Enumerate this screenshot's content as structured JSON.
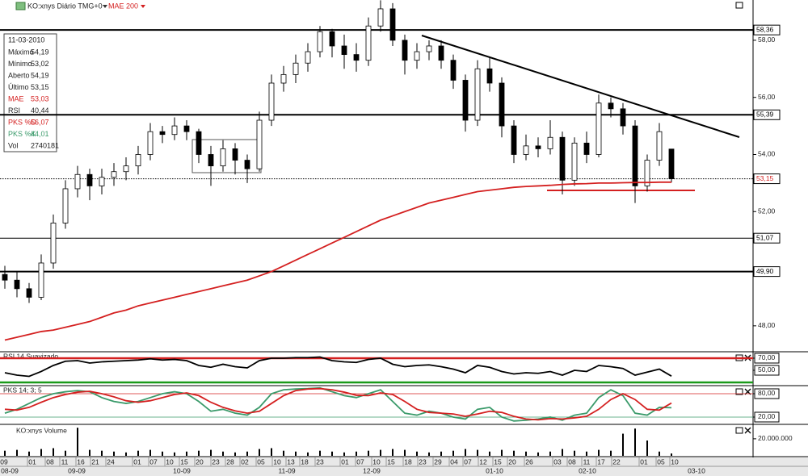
{
  "header": {
    "title": "KO:xnys Diário TMG+0"
  },
  "info_box": {
    "date": "11-03-2010",
    "rows": [
      {
        "label": "Máximo",
        "value": "54,19",
        "color": "#222"
      },
      {
        "label": "Mínimo",
        "value": "53,02",
        "color": "#222"
      },
      {
        "label": "Aberto",
        "value": "54,19",
        "color": "#222"
      },
      {
        "label": "Último",
        "value": "53,15",
        "color": "#222"
      },
      {
        "label": "MAE",
        "value": "53,03",
        "color": "#d42020"
      },
      {
        "label": "RSI",
        "value": "40,44",
        "color": "#222"
      },
      {
        "label": "PKS %D",
        "value": "56,07",
        "color": "#d42020"
      },
      {
        "label": "PKS %K",
        "value": "44,01",
        "color": "#3a9a6a"
      },
      {
        "label": "Vol",
        "value": "2740181",
        "color": "#222"
      }
    ]
  },
  "chart_data": [
    {
      "type": "candlestick",
      "open": [
        49.8,
        49.6,
        49.3,
        49.0,
        50.2,
        51.6,
        52.8,
        53.3,
        52.9,
        53.2,
        53.4,
        53.6,
        54.0,
        54.8,
        54.7,
        55.0,
        54.8,
        54.0,
        53.6,
        54.2,
        53.8,
        53.5,
        55.2,
        56.5,
        56.8,
        57.2,
        57.6,
        58.3,
        57.8,
        57.5,
        57.3,
        58.5,
        59.1,
        58.0,
        57.3,
        57.6,
        57.8,
        57.3,
        56.6,
        55.2,
        57.0,
        56.5,
        55.0,
        54.0,
        54.3,
        54.2,
        54.6,
        53.1,
        54.4,
        54.0,
        55.8,
        55.6,
        55.0,
        52.9,
        53.8,
        54.19
      ],
      "high": [
        50.1,
        49.9,
        49.5,
        50.5,
        51.9,
        53.1,
        53.6,
        53.5,
        53.5,
        53.7,
        53.9,
        54.3,
        55.1,
        55.0,
        55.3,
        55.2,
        54.9,
        54.3,
        54.5,
        54.4,
        54.0,
        55.5,
        56.8,
        57.1,
        57.5,
        57.9,
        58.5,
        58.4,
        58.2,
        57.9,
        58.8,
        59.4,
        59.3,
        58.2,
        57.9,
        58.0,
        58.0,
        57.5,
        56.8,
        57.3,
        57.4,
        56.7,
        55.2,
        54.7,
        54.6,
        55.2,
        54.8,
        54.6,
        54.8,
        56.1,
        56.0,
        55.8,
        55.2,
        54.0,
        55.1,
        54.19
      ],
      "low": [
        49.3,
        49.0,
        48.8,
        48.9,
        50.0,
        51.4,
        52.5,
        52.4,
        52.6,
        52.9,
        53.1,
        53.3,
        53.8,
        54.4,
        54.5,
        54.5,
        53.7,
        52.9,
        53.4,
        53.3,
        53.0,
        53.4,
        55.0,
        56.2,
        56.5,
        56.9,
        57.4,
        57.4,
        57.0,
        56.9,
        57.1,
        58.3,
        57.8,
        56.8,
        57.0,
        57.3,
        57.0,
        56.3,
        54.8,
        55.0,
        56.2,
        54.6,
        53.7,
        53.8,
        53.9,
        54.0,
        52.6,
        52.9,
        53.7,
        53.9,
        55.3,
        54.7,
        52.3,
        52.7,
        53.6,
        53.02
      ],
      "close": [
        49.6,
        49.3,
        49.0,
        50.2,
        51.6,
        52.8,
        53.3,
        52.9,
        53.2,
        53.4,
        53.6,
        54.0,
        54.8,
        54.7,
        55.0,
        54.8,
        54.0,
        53.6,
        54.2,
        53.8,
        53.5,
        55.2,
        56.5,
        56.8,
        57.2,
        57.6,
        58.3,
        57.8,
        57.5,
        57.3,
        58.5,
        59.1,
        58.0,
        57.3,
        57.6,
        57.8,
        57.3,
        56.6,
        55.2,
        57.0,
        56.5,
        55.0,
        54.0,
        54.3,
        54.2,
        54.6,
        53.1,
        54.4,
        54.0,
        55.8,
        55.6,
        55.0,
        52.9,
        53.8,
        54.8,
        53.15
      ],
      "series": [
        {
          "name": "MAE 200",
          "color": "#d42020",
          "values": [
            47.5,
            47.6,
            47.7,
            47.8,
            47.85,
            47.95,
            48.05,
            48.15,
            48.3,
            48.45,
            48.55,
            48.7,
            48.8,
            48.9,
            49.0,
            49.1,
            49.2,
            49.3,
            49.4,
            49.5,
            49.6,
            49.75,
            49.9,
            50.1,
            50.3,
            50.5,
            50.7,
            50.9,
            51.1,
            51.3,
            51.5,
            51.7,
            51.85,
            52.0,
            52.15,
            52.3,
            52.4,
            52.5,
            52.6,
            52.7,
            52.75,
            52.8,
            52.85,
            52.88,
            52.9,
            52.92,
            52.95,
            52.97,
            52.98,
            53.0,
            53.0,
            53.01,
            53.02,
            53.02,
            53.03,
            53.03
          ]
        }
      ],
      "ylim": [
        47.12,
        59.41
      ],
      "yticks": [
        {
          "value": 48,
          "label": "48,00"
        },
        {
          "value": 52,
          "label": "52,00"
        },
        {
          "value": 54,
          "label": "54,00"
        },
        {
          "value": 56,
          "label": "56,00"
        },
        {
          "value": 58,
          "label": "58,00"
        }
      ],
      "levels": [
        {
          "value": 58.36,
          "label": "58,36",
          "style": "thick",
          "color": "#000"
        },
        {
          "value": 55.39,
          "label": "55,39",
          "style": "thick",
          "color": "#000"
        },
        {
          "value": 53.15,
          "label": "53,15",
          "style": "dotted",
          "color": "#d42020"
        },
        {
          "value": 51.07,
          "label": "51,07",
          "style": "thin",
          "color": "#000"
        },
        {
          "value": 49.9,
          "label": "49,90",
          "style": "thick",
          "color": "#000"
        }
      ]
    },
    {
      "type": "line",
      "title": "RSI 14 Suavizado",
      "series": [
        {
          "color": "#000",
          "values": [
            46,
            42,
            40,
            48,
            58,
            65,
            66,
            62,
            64,
            65,
            66,
            67,
            69,
            67,
            68,
            66,
            58,
            55,
            60,
            56,
            54,
            66,
            70,
            70,
            71,
            71,
            72,
            66,
            64,
            63,
            68,
            70,
            60,
            56,
            58,
            59,
            56,
            52,
            46,
            58,
            55,
            48,
            44,
            46,
            45,
            48,
            42,
            50,
            48,
            58,
            56,
            53,
            42,
            47,
            52,
            40.44
          ]
        }
      ],
      "ylim": [
        26,
        79.3
      ],
      "yticks": [
        {
          "value": 70,
          "label": "70,00"
        },
        {
          "value": 50,
          "label": "50,00"
        }
      ],
      "levels": [
        {
          "value": 70,
          "color": "#d42020",
          "width": 2.5
        },
        {
          "value": 30,
          "color": "#1a9a1a",
          "width": 2.5
        }
      ]
    },
    {
      "type": "line",
      "title": "PKS 14; 3; 5",
      "series": [
        {
          "color": "#3a9a6a",
          "values": [
            30,
            40,
            55,
            70,
            80,
            85,
            88,
            85,
            70,
            60,
            55,
            60,
            70,
            80,
            85,
            80,
            60,
            35,
            40,
            30,
            25,
            45,
            80,
            90,
            92,
            93,
            95,
            85,
            75,
            70,
            80,
            90,
            60,
            30,
            25,
            35,
            30,
            20,
            15,
            40,
            45,
            20,
            10,
            12,
            15,
            20,
            12,
            25,
            30,
            70,
            90,
            75,
            30,
            25,
            45,
            44.01
          ]
        },
        {
          "color": "#d42020",
          "values": [
            40,
            38,
            45,
            58,
            70,
            78,
            84,
            86,
            80,
            72,
            62,
            58,
            62,
            70,
            78,
            82,
            75,
            58,
            45,
            36,
            30,
            35,
            55,
            75,
            88,
            92,
            93,
            90,
            84,
            76,
            75,
            82,
            78,
            60,
            40,
            32,
            30,
            28,
            22,
            28,
            35,
            32,
            22,
            15,
            13,
            16,
            15,
            18,
            22,
            40,
            65,
            80,
            65,
            40,
            38,
            56.07
          ]
        }
      ],
      "ylim": [
        3.4,
        98.6
      ],
      "yticks": [
        {
          "value": 80,
          "label": "80,00"
        },
        {
          "value": 20,
          "label": "20,00"
        }
      ],
      "levels": [
        {
          "value": 80,
          "color": "#d42020",
          "width": 0.8
        },
        {
          "value": 20,
          "color": "#3a9a6a",
          "width": 0.8
        }
      ]
    },
    {
      "type": "bar",
      "title": "KO:xnys Volume",
      "color": "#000",
      "values": [
        6000000,
        7000000,
        5000000,
        8000000,
        9000000,
        6000000,
        33000000,
        7000000,
        6000000,
        5000000,
        4000000,
        6000000,
        7000000,
        5000000,
        4000000,
        5000000,
        6000000,
        7000000,
        5000000,
        4000000,
        5000000,
        8000000,
        9000000,
        6000000,
        5000000,
        4000000,
        6000000,
        5000000,
        4000000,
        5000000,
        6000000,
        7000000,
        8000000,
        7000000,
        5000000,
        4000000,
        5000000,
        6000000,
        8000000,
        7000000,
        5000000,
        7000000,
        6000000,
        5000000,
        4000000,
        5000000,
        8000000,
        6000000,
        5000000,
        7000000,
        6000000,
        26000000,
        32000000,
        18000000,
        5000000,
        2740181
      ],
      "ylim": [
        0,
        36000000
      ],
      "yticks": [
        {
          "value": 20000000,
          "label": "20.000.000"
        }
      ]
    }
  ],
  "date_axis": {
    "days": [
      "09",
      "01",
      "08",
      "11",
      "16",
      "21",
      "24",
      "01",
      "07",
      "10",
      "15",
      "20",
      "23",
      "28",
      "02",
      "05",
      "10",
      "13",
      "18",
      "23",
      "01",
      "07",
      "10",
      "15",
      "18",
      "23",
      "29",
      "04",
      "07",
      "12",
      "15",
      "20",
      "26",
      "03",
      "08",
      "11",
      "17",
      "22",
      "01",
      "05",
      "10"
    ],
    "months": [
      "08-09",
      "09-09",
      "10-09",
      "11-09",
      "12-09",
      "01-10",
      "02-10",
      "03-10"
    ]
  }
}
